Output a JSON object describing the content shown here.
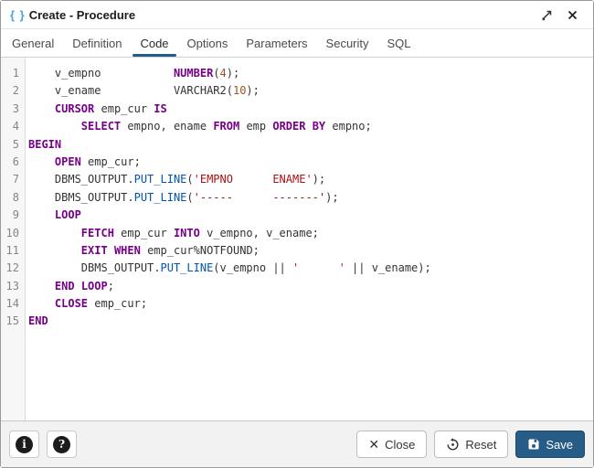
{
  "window": {
    "title": "Create - Procedure",
    "icon_text": "{ }"
  },
  "tabs": [
    {
      "label": "General",
      "active": false
    },
    {
      "label": "Definition",
      "active": false
    },
    {
      "label": "Code",
      "active": true
    },
    {
      "label": "Options",
      "active": false
    },
    {
      "label": "Parameters",
      "active": false
    },
    {
      "label": "Security",
      "active": false
    },
    {
      "label": "SQL",
      "active": false
    }
  ],
  "editor": {
    "language": "pl/sql",
    "lines": [
      {
        "n": 1,
        "tokens": [
          [
            "v",
            "    v_empno           "
          ],
          [
            "k",
            "NUMBER"
          ],
          [
            "v",
            "("
          ],
          [
            "n",
            "4"
          ],
          [
            "v",
            ");"
          ]
        ]
      },
      {
        "n": 2,
        "tokens": [
          [
            "v",
            "    v_ename           VARCHAR2("
          ],
          [
            "n",
            "10"
          ],
          [
            "v",
            ");"
          ]
        ]
      },
      {
        "n": 3,
        "tokens": [
          [
            "v",
            "    "
          ],
          [
            "k",
            "CURSOR"
          ],
          [
            "v",
            " emp_cur "
          ],
          [
            "k",
            "IS"
          ]
        ]
      },
      {
        "n": 4,
        "tokens": [
          [
            "v",
            "        "
          ],
          [
            "k",
            "SELECT"
          ],
          [
            "v",
            " empno, ename "
          ],
          [
            "k",
            "FROM"
          ],
          [
            "v",
            " emp "
          ],
          [
            "k",
            "ORDER"
          ],
          [
            "v",
            " "
          ],
          [
            "k",
            "BY"
          ],
          [
            "v",
            " empno;"
          ]
        ]
      },
      {
        "n": 5,
        "tokens": [
          [
            "k",
            "BEGIN"
          ]
        ]
      },
      {
        "n": 6,
        "tokens": [
          [
            "v",
            "    "
          ],
          [
            "k",
            "OPEN"
          ],
          [
            "v",
            " emp_cur;"
          ]
        ]
      },
      {
        "n": 7,
        "tokens": [
          [
            "v",
            "    DBMS_OUTPUT."
          ],
          [
            "f",
            "PUT_LINE"
          ],
          [
            "v",
            "("
          ],
          [
            "s",
            "'EMPNO      ENAME'"
          ],
          [
            "v",
            ");"
          ]
        ]
      },
      {
        "n": 8,
        "tokens": [
          [
            "v",
            "    DBMS_OUTPUT."
          ],
          [
            "f",
            "PUT_LINE"
          ],
          [
            "v",
            "("
          ],
          [
            "s",
            "'-----      -------'"
          ],
          [
            "v",
            ");"
          ]
        ]
      },
      {
        "n": 9,
        "tokens": [
          [
            "v",
            "    "
          ],
          [
            "k",
            "LOOP"
          ]
        ]
      },
      {
        "n": 10,
        "tokens": [
          [
            "v",
            "        "
          ],
          [
            "k",
            "FETCH"
          ],
          [
            "v",
            " emp_cur "
          ],
          [
            "k",
            "INTO"
          ],
          [
            "v",
            " v_empno, v_ename;"
          ]
        ]
      },
      {
        "n": 11,
        "tokens": [
          [
            "v",
            "        "
          ],
          [
            "k",
            "EXIT"
          ],
          [
            "v",
            " "
          ],
          [
            "k",
            "WHEN"
          ],
          [
            "v",
            " emp_cur%NOTFOUND;"
          ]
        ]
      },
      {
        "n": 12,
        "tokens": [
          [
            "v",
            "        DBMS_OUTPUT."
          ],
          [
            "f",
            "PUT_LINE"
          ],
          [
            "v",
            "(v_empno || "
          ],
          [
            "s",
            "'      '"
          ],
          [
            "v",
            " || v_ename);"
          ]
        ]
      },
      {
        "n": 13,
        "tokens": [
          [
            "v",
            "    "
          ],
          [
            "k",
            "END"
          ],
          [
            "v",
            " "
          ],
          [
            "k",
            "LOOP"
          ],
          [
            "v",
            ";"
          ]
        ]
      },
      {
        "n": 14,
        "tokens": [
          [
            "v",
            "    "
          ],
          [
            "k",
            "CLOSE"
          ],
          [
            "v",
            " emp_cur;"
          ]
        ]
      },
      {
        "n": 15,
        "tokens": [
          [
            "k",
            "END"
          ]
        ]
      }
    ]
  },
  "footer": {
    "info_glyph": "i",
    "help_glyph": "?",
    "close_label": "Close",
    "reset_label": "Reset",
    "save_label": "Save"
  },
  "colors": {
    "accent": "#265c85",
    "keyword": "#770088",
    "builtin": "#0055aa",
    "string": "#aa1111",
    "number": "#a4511f"
  }
}
